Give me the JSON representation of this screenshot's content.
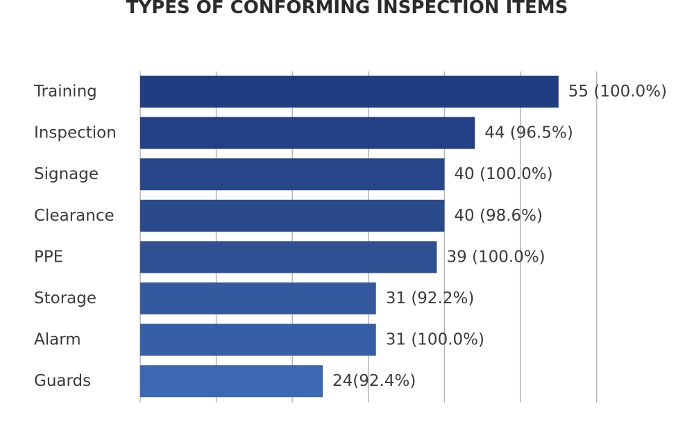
{
  "chart_data": {
    "type": "bar",
    "orientation": "horizontal",
    "title": "TYPES OF CONFORMING INSPECTION ITEMS",
    "categories": [
      "Training",
      "Inspection",
      "Signage",
      "Clearance",
      "PPE",
      "Storage",
      "Alarm",
      "Guards"
    ],
    "values": [
      55,
      44,
      40,
      40,
      39,
      31,
      31,
      24
    ],
    "data_labels": [
      "55 (100.0%)",
      "44 (96.5%)",
      "40 (100.0%)",
      "40 (98.6%)",
      "39 (100.0%)",
      "31 (92.2%)",
      "31 (100.0%)",
      "24(92.4%)"
    ],
    "xlim": [
      0,
      60
    ],
    "grid": true,
    "legend": "none",
    "colors": [
      "#213d82",
      "#233f85",
      "#284689",
      "#2a4a8c",
      "#2f5193",
      "#34599e",
      "#375fa6",
      "#3b67b3"
    ]
  }
}
